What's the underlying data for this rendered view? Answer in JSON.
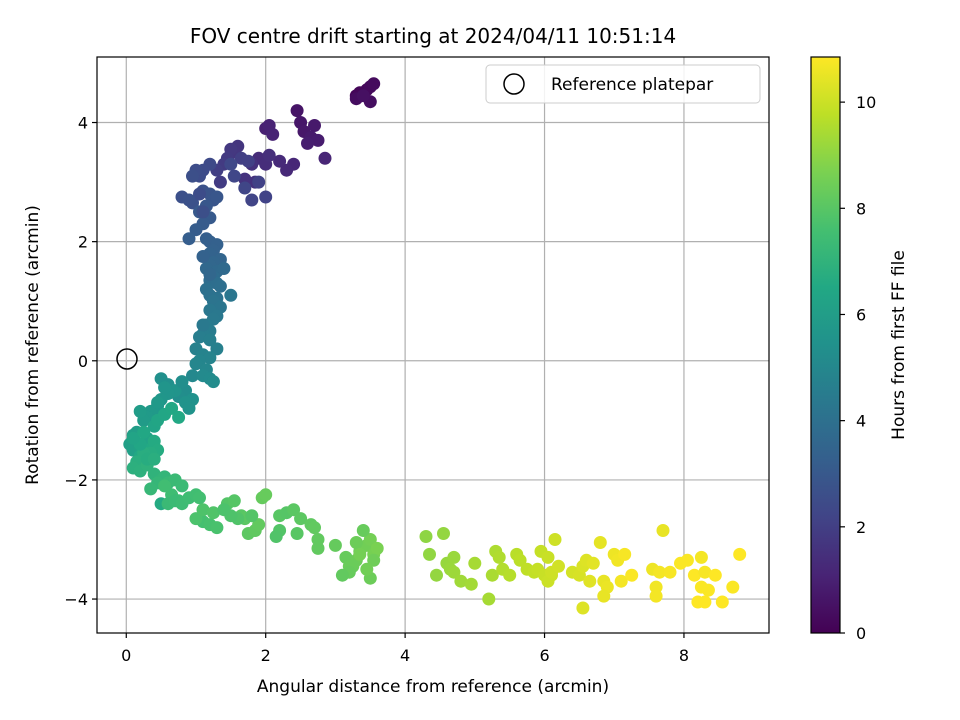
{
  "chart_data": {
    "type": "scatter",
    "title": "FOV centre drift starting at 2024/04/11 10:51:14",
    "xlabel": "Angular distance from reference (arcmin)",
    "ylabel": "Rotation from reference (arcmin)",
    "xlim": [
      -0.42,
      9.22
    ],
    "ylim": [
      -4.57,
      5.1
    ],
    "xticks": [
      0,
      2,
      4,
      6,
      8
    ],
    "yticks": [
      -4,
      -2,
      0,
      2,
      4
    ],
    "grid": true,
    "legend": {
      "placement": "top-right",
      "entries": [
        "Reference platepar"
      ]
    },
    "reference_point": {
      "x": 0,
      "y": 0,
      "label": "Reference platepar"
    },
    "colorbar": {
      "label": "Hours from first FF file",
      "min": 0,
      "max": 10.85,
      "ticks": [
        0,
        2,
        4,
        6,
        8,
        10
      ],
      "colormap": "viridis"
    },
    "series": [
      {
        "x": [
          3.3,
          3.35,
          3.45,
          3.5,
          3.55,
          3.3,
          3.5,
          3.4
        ],
        "y": [
          4.45,
          4.5,
          4.55,
          4.6,
          4.65,
          4.4,
          4.35,
          4.45
        ],
        "hours": [
          0.1,
          0.15,
          0.2,
          0.25,
          0.3,
          0.35,
          0.4,
          0.45
        ]
      },
      {
        "x": [
          2.45,
          2.5,
          2.55,
          2.7,
          2.65,
          2.75,
          2.6,
          2.0,
          2.05,
          2.1,
          2.85,
          2.4,
          2.3,
          2.2
        ],
        "y": [
          4.2,
          4.0,
          3.85,
          3.95,
          3.75,
          3.7,
          3.65,
          3.9,
          3.95,
          3.8,
          3.4,
          3.3,
          3.2,
          3.35
        ],
        "hours": [
          0.6,
          0.65,
          0.7,
          0.75,
          0.8,
          0.85,
          0.9,
          1.0,
          1.05,
          1.1,
          1.15,
          1.2,
          1.25,
          1.3
        ]
      },
      {
        "x": [
          1.9,
          2.0,
          2.05,
          1.8,
          1.85,
          1.7,
          1.6,
          1.55,
          1.5,
          1.45,
          1.4,
          1.35,
          1.3,
          1.65,
          1.75,
          1.9,
          2.0,
          1.8,
          1.7,
          1.55,
          1.5
        ],
        "y": [
          3.4,
          3.3,
          3.45,
          3.3,
          3.0,
          3.05,
          3.6,
          3.5,
          3.55,
          3.4,
          3.3,
          3.0,
          3.2,
          3.4,
          3.35,
          3.0,
          2.75,
          2.7,
          2.9,
          3.1,
          3.3
        ],
        "hours": [
          1.35,
          1.4,
          1.45,
          1.5,
          1.55,
          1.6,
          1.65,
          1.7,
          1.75,
          1.8,
          1.85,
          1.9,
          1.95,
          2.0,
          2.05,
          2.1,
          2.15,
          2.2,
          2.25,
          2.3,
          2.35
        ]
      },
      {
        "x": [
          1.2,
          1.1,
          1.05,
          1.0,
          0.95,
          0.8,
          0.95,
          1.1,
          1.2,
          1.25,
          1.3,
          1.15,
          1.05,
          1.2,
          1.1,
          1.0,
          0.9,
          1.15,
          1.2,
          1.05,
          1.1,
          0.9
        ],
        "y": [
          3.3,
          3.2,
          3.1,
          3.2,
          3.1,
          2.75,
          2.65,
          2.85,
          2.8,
          2.7,
          2.75,
          2.6,
          2.5,
          2.4,
          2.3,
          2.2,
          2.05,
          2.05,
          2.0,
          2.8,
          2.5,
          2.7
        ],
        "hours": [
          2.4,
          2.45,
          2.5,
          2.55,
          2.6,
          2.65,
          2.7,
          2.75,
          2.8,
          2.85,
          2.9,
          2.95,
          3.0,
          3.05,
          3.1,
          3.15,
          3.2,
          3.25,
          3.3,
          2.5,
          2.6,
          2.7
        ]
      },
      {
        "x": [
          1.3,
          1.25,
          1.2,
          1.35,
          1.25,
          1.2,
          1.15,
          1.3,
          1.4,
          1.25,
          1.2,
          1.3,
          1.35,
          1.15,
          1.2,
          1.3,
          1.25,
          1.35,
          1.5,
          1.2,
          1.1
        ],
        "y": [
          1.95,
          1.85,
          1.8,
          1.7,
          1.65,
          1.6,
          1.55,
          1.5,
          1.55,
          1.4,
          1.35,
          1.3,
          1.25,
          1.2,
          1.1,
          1.05,
          1.0,
          0.9,
          1.1,
          1.45,
          1.75
        ],
        "hours": [
          3.35,
          3.4,
          3.45,
          3.5,
          3.55,
          3.6,
          3.65,
          3.7,
          3.75,
          3.8,
          3.85,
          3.9,
          3.95,
          4.0,
          4.05,
          4.1,
          4.15,
          4.2,
          4.25,
          3.6,
          3.4
        ]
      },
      {
        "x": [
          1.2,
          1.3,
          1.25,
          1.15,
          1.2,
          1.1,
          1.05,
          1.2,
          1.3,
          1.0,
          1.1,
          1.2,
          1.05,
          1.0,
          1.15,
          0.95,
          1.1,
          1.2,
          1.25,
          1.1
        ],
        "y": [
          0.85,
          0.75,
          0.7,
          0.6,
          0.5,
          0.45,
          0.4,
          0.35,
          0.2,
          0.2,
          0.1,
          0.05,
          0.0,
          -0.05,
          -0.15,
          -0.25,
          -0.25,
          -0.3,
          -0.35,
          0.6
        ],
        "hours": [
          4.3,
          4.35,
          4.4,
          4.45,
          4.5,
          4.55,
          4.6,
          4.65,
          4.7,
          4.75,
          4.8,
          4.85,
          4.9,
          4.95,
          5.0,
          5.05,
          5.1,
          5.15,
          5.2,
          4.4
        ]
      },
      {
        "x": [
          0.85,
          0.75,
          0.6,
          0.5,
          0.95,
          0.85,
          0.7,
          0.6,
          0.5,
          0.45,
          0.4,
          0.35,
          0.3,
          0.25,
          0.2,
          0.15,
          0.1,
          0.05,
          0.1,
          0.2,
          0.3,
          0.4,
          0.45,
          0.55,
          0.65,
          0.75,
          0.9,
          0.8,
          0.55,
          0.45
        ],
        "y": [
          -0.5,
          -0.6,
          -0.4,
          -0.3,
          -0.65,
          -0.7,
          -0.5,
          -0.55,
          -0.65,
          -0.75,
          -0.9,
          -0.85,
          -0.95,
          -1.0,
          -0.85,
          -1.2,
          -1.25,
          -1.4,
          -1.5,
          -1.45,
          -1.3,
          -1.1,
          -1.0,
          -0.9,
          -0.8,
          -0.95,
          -0.8,
          -0.35,
          -0.45,
          -0.7
        ],
        "hours": [
          5.25,
          5.3,
          5.35,
          5.4,
          5.45,
          5.5,
          5.55,
          5.6,
          5.65,
          5.7,
          5.75,
          5.8,
          5.85,
          5.9,
          5.95,
          6.0,
          6.05,
          6.1,
          6.15,
          6.2,
          6.25,
          6.3,
          6.35,
          6.4,
          6.45,
          6.5,
          5.5,
          5.3,
          5.6,
          5.8
        ]
      },
      {
        "x": [
          0.2,
          0.3,
          0.4,
          0.45,
          0.35,
          0.25,
          0.15,
          0.1,
          0.2,
          0.3,
          0.4,
          0.5,
          0.55,
          0.45,
          0.35,
          0.6,
          0.7,
          0.8,
          0.75,
          0.65,
          0.55,
          0.5,
          0.3,
          0.2,
          0.1,
          0.4,
          0.25
        ],
        "y": [
          -1.6,
          -1.5,
          -1.35,
          -1.5,
          -1.55,
          -1.55,
          -1.7,
          -1.8,
          -1.85,
          -1.75,
          -1.9,
          -2.0,
          -1.95,
          -2.05,
          -2.15,
          -2.05,
          -2.0,
          -2.1,
          -2.35,
          -2.25,
          -2.1,
          -2.4,
          -1.65,
          -1.4,
          -1.3,
          -1.65,
          -1.2
        ],
        "hours": [
          6.5,
          6.55,
          6.6,
          6.65,
          6.7,
          6.75,
          6.8,
          6.85,
          6.9,
          6.95,
          7.0,
          7.05,
          7.1,
          7.15,
          7.2,
          7.25,
          7.3,
          7.35,
          7.4,
          7.45,
          7.5,
          6.6,
          6.7,
          6.4,
          6.3,
          6.8,
          6.45
        ]
      },
      {
        "x": [
          0.6,
          0.7,
          0.8,
          0.9,
          1.0,
          1.05,
          1.1,
          1.2,
          1.3,
          1.0,
          1.1,
          1.25,
          1.45,
          1.55,
          1.65,
          1.7,
          1.75,
          1.85,
          1.9,
          1.95,
          2.0,
          1.8,
          1.6,
          1.5,
          1.4,
          2.2,
          2.3,
          2.4,
          2.5,
          2.65,
          2.7,
          2.45,
          2.2,
          2.15
        ],
        "y": [
          -2.4,
          -2.35,
          -2.4,
          -2.3,
          -2.25,
          -2.3,
          -2.7,
          -2.75,
          -2.8,
          -2.65,
          -2.5,
          -2.55,
          -2.4,
          -2.35,
          -2.6,
          -2.65,
          -2.9,
          -2.85,
          -2.75,
          -2.3,
          -2.25,
          -2.6,
          -2.65,
          -2.6,
          -2.5,
          -2.6,
          -2.55,
          -2.5,
          -2.65,
          -2.75,
          -2.8,
          -2.9,
          -2.85,
          -2.95
        ],
        "hours": [
          7.3,
          7.35,
          7.4,
          7.45,
          7.5,
          7.55,
          7.6,
          7.65,
          7.7,
          7.75,
          7.8,
          7.85,
          7.9,
          7.95,
          8.0,
          8.05,
          8.1,
          8.15,
          8.2,
          8.25,
          8.3,
          7.9,
          7.85,
          7.8,
          7.75,
          8.0,
          7.95,
          8.05,
          8.1,
          8.15,
          8.2,
          8.0,
          7.9,
          7.85
        ]
      },
      {
        "x": [
          2.75,
          3.0,
          3.15,
          3.2,
          3.3,
          3.35,
          3.45,
          3.5,
          3.55,
          3.6,
          3.4,
          3.3,
          3.25,
          3.2,
          3.1,
          2.75,
          3.5,
          3.55,
          3.45,
          3.35
        ],
        "y": [
          -3.0,
          -3.1,
          -3.3,
          -3.45,
          -3.35,
          -3.2,
          -3.1,
          -3.0,
          -3.25,
          -3.15,
          -2.85,
          -3.05,
          -3.45,
          -3.55,
          -3.6,
          -3.15,
          -3.65,
          -3.35,
          -3.5,
          -3.25
        ],
        "hours": [
          8.2,
          8.25,
          8.3,
          8.35,
          8.4,
          8.45,
          8.5,
          8.55,
          8.6,
          8.65,
          8.3,
          8.4,
          8.35,
          8.3,
          8.2,
          8.2,
          8.4,
          8.45,
          8.5,
          8.55
        ]
      },
      {
        "x": [
          4.3,
          4.35,
          4.55,
          4.6,
          4.65,
          4.7,
          4.8,
          4.95,
          5.0,
          5.25,
          5.3,
          5.35,
          5.4,
          5.5,
          5.6,
          5.65,
          5.75,
          5.85,
          5.95,
          6.05,
          6.1,
          6.15,
          5.2,
          4.45,
          4.7
        ],
        "y": [
          -2.95,
          -3.25,
          -2.9,
          -3.4,
          -3.5,
          -3.55,
          -3.7,
          -3.75,
          -3.4,
          -3.6,
          -3.2,
          -3.3,
          -3.5,
          -3.6,
          -3.25,
          -3.35,
          -3.5,
          -3.55,
          -3.2,
          -3.3,
          -3.6,
          -3.0,
          -4.0,
          -3.6,
          -3.3
        ],
        "hours": [
          9.0,
          9.05,
          9.1,
          9.15,
          9.2,
          9.25,
          9.3,
          9.35,
          9.4,
          9.45,
          9.5,
          9.55,
          9.6,
          9.65,
          9.7,
          9.75,
          9.8,
          9.85,
          9.9,
          9.95,
          10.0,
          10.05,
          9.4,
          9.1,
          9.2
        ]
      },
      {
        "x": [
          5.9,
          6.0,
          6.05,
          6.1,
          6.2,
          6.4,
          6.5,
          6.55,
          6.6,
          6.65,
          6.7,
          6.8,
          6.85,
          6.9,
          7.0,
          7.05,
          7.1,
          7.15,
          7.25,
          7.55,
          7.6,
          7.65,
          7.7,
          7.8,
          7.95,
          8.05,
          8.15,
          8.2,
          8.25,
          8.3,
          8.35,
          8.45,
          8.55,
          8.7,
          8.8,
          6.55,
          6.85,
          7.6,
          8.3,
          8.25
        ],
        "y": [
          -3.5,
          -3.6,
          -3.7,
          -3.55,
          -3.45,
          -3.55,
          -3.6,
          -3.45,
          -3.35,
          -3.7,
          -3.4,
          -3.05,
          -3.7,
          -3.8,
          -3.25,
          -3.35,
          -3.7,
          -3.25,
          -3.6,
          -3.5,
          -3.8,
          -3.55,
          -2.85,
          -3.55,
          -3.4,
          -3.35,
          -3.6,
          -4.05,
          -3.3,
          -3.55,
          -3.85,
          -3.6,
          -4.05,
          -3.8,
          -3.25,
          -4.15,
          -3.95,
          -3.95,
          -4.05,
          -3.8
        ],
        "hours": [
          9.9,
          9.95,
          10.0,
          10.05,
          10.1,
          10.15,
          10.2,
          10.25,
          10.3,
          10.35,
          10.4,
          10.45,
          10.5,
          10.55,
          10.6,
          10.65,
          10.7,
          10.75,
          10.8,
          10.6,
          10.65,
          10.7,
          10.5,
          10.75,
          10.8,
          10.8,
          10.85,
          10.85,
          10.7,
          10.75,
          10.8,
          10.85,
          10.85,
          10.8,
          10.85,
          10.3,
          10.5,
          10.7,
          10.85,
          10.8
        ]
      }
    ]
  }
}
